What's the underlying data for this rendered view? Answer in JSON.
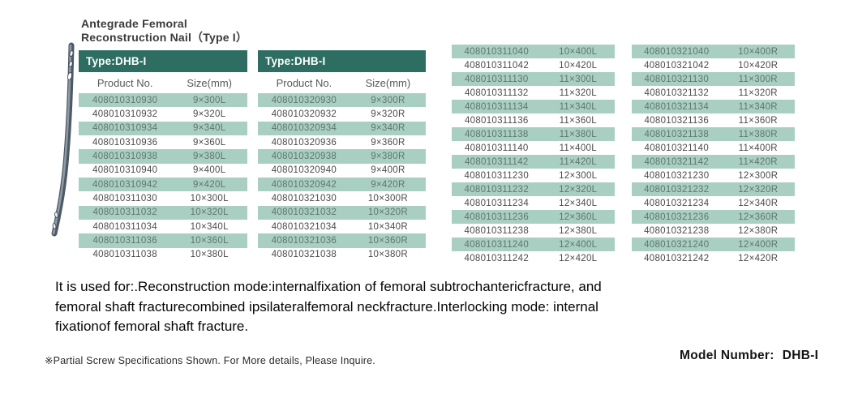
{
  "header": {
    "title_line1": "Antegrade Femoral",
    "title_line2": "Reconstruction Nail（Type I）"
  },
  "images": {
    "nail": "femoral-nail-illustration"
  },
  "colors": {
    "accent_teal": "#2E6E62",
    "row_highlight": "#A9CFC3"
  },
  "tables": [
    {
      "type_label": "Type:DHB-I",
      "columns": [
        "Product No.",
        "Size(mm)"
      ],
      "rows": [
        [
          "408010310930",
          "9×300L"
        ],
        [
          "408010310932",
          "9×320L"
        ],
        [
          "408010310934",
          "9×340L"
        ],
        [
          "408010310936",
          "9×360L"
        ],
        [
          "408010310938",
          "9×380L"
        ],
        [
          "408010310940",
          "9×400L"
        ],
        [
          "408010310942",
          "9×420L"
        ],
        [
          "408010311030",
          "10×300L"
        ],
        [
          "408010311032",
          "10×320L"
        ],
        [
          "408010311034",
          "10×340L"
        ],
        [
          "408010311036",
          "10×360L"
        ],
        [
          "408010311038",
          "10×380L"
        ]
      ]
    },
    {
      "type_label": "Type:DHB-I",
      "columns": [
        "Product No.",
        "Size(mm)"
      ],
      "rows": [
        [
          "408010320930",
          "9×300R"
        ],
        [
          "408010320932",
          "9×320R"
        ],
        [
          "408010320934",
          "9×340R"
        ],
        [
          "408010320936",
          "9×360R"
        ],
        [
          "408010320938",
          "9×380R"
        ],
        [
          "408010320940",
          "9×400R"
        ],
        [
          "408010320942",
          "9×420R"
        ],
        [
          "408010321030",
          "10×300R"
        ],
        [
          "408010321032",
          "10×320R"
        ],
        [
          "408010321034",
          "10×340R"
        ],
        [
          "408010321036",
          "10×360R"
        ],
        [
          "408010321038",
          "10×380R"
        ]
      ]
    },
    {
      "type_label": null,
      "columns": null,
      "rows": [
        [
          "408010311040",
          "10×400L"
        ],
        [
          "408010311042",
          "10×420L"
        ],
        [
          "408010311130",
          "11×300L"
        ],
        [
          "408010311132",
          "11×320L"
        ],
        [
          "408010311134",
          "11×340L"
        ],
        [
          "408010311136",
          "11×360L"
        ],
        [
          "408010311138",
          "11×380L"
        ],
        [
          "408010311140",
          "11×400L"
        ],
        [
          "408010311142",
          "11×420L"
        ],
        [
          "408010311230",
          "12×300L"
        ],
        [
          "408010311232",
          "12×320L"
        ],
        [
          "408010311234",
          "12×340L"
        ],
        [
          "408010311236",
          "12×360L"
        ],
        [
          "408010311238",
          "12×380L"
        ],
        [
          "408010311240",
          "12×400L"
        ],
        [
          "408010311242",
          "12×420L"
        ]
      ]
    },
    {
      "type_label": null,
      "columns": null,
      "rows": [
        [
          "408010321040",
          "10×400R"
        ],
        [
          "408010321042",
          "10×420R"
        ],
        [
          "408010321130",
          "11×300R"
        ],
        [
          "408010321132",
          "11×320R"
        ],
        [
          "408010321134",
          "11×340R"
        ],
        [
          "408010321136",
          "11×360R"
        ],
        [
          "408010321138",
          "11×380R"
        ],
        [
          "408010321140",
          "11×400R"
        ],
        [
          "408010321142",
          "11×420R"
        ],
        [
          "408010321230",
          "12×300R"
        ],
        [
          "408010321232",
          "12×320R"
        ],
        [
          "408010321234",
          "12×340R"
        ],
        [
          "408010321236",
          "12×360R"
        ],
        [
          "408010321238",
          "12×380R"
        ],
        [
          "408010321240",
          "12×400R"
        ],
        [
          "408010321242",
          "12×420R"
        ]
      ]
    }
  ],
  "usage": {
    "lines": [
      "It is used for:.Reconstruction mode:internalfixation of femoral subtrochantericfracture, and",
      "femoral shaft fracturecombined ipsilateralfemoral neckfracture.Interlocking mode: internal",
      "fixationof femoral shaft fracture."
    ]
  },
  "footer": {
    "note": "※Partial Screw Specifications Shown. For More  details, Please Inquire.",
    "model_label": "Model  Number:",
    "model_value": "DHB-I"
  }
}
